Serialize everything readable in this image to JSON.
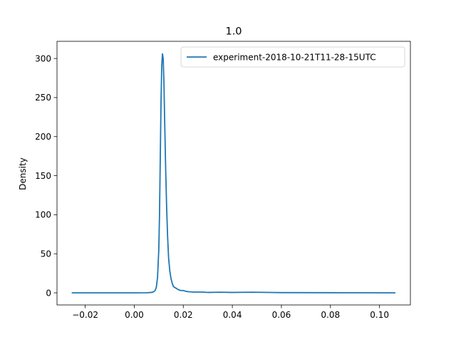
{
  "chart_data": {
    "type": "line",
    "title": "1.0",
    "xlabel": "",
    "ylabel": "Density",
    "xlim": [
      -0.0315,
      0.1126
    ],
    "ylim": [
      -15.5,
      322
    ],
    "xticks": [
      -0.02,
      0.0,
      0.02,
      0.04,
      0.06,
      0.08,
      0.1
    ],
    "xtick_labels": [
      "−0.02",
      "0.00",
      "0.02",
      "0.04",
      "0.06",
      "0.08",
      "0.10"
    ],
    "yticks": [
      0,
      50,
      100,
      150,
      200,
      250,
      300
    ],
    "ytick_labels": [
      "0",
      "50",
      "100",
      "150",
      "200",
      "250",
      "300"
    ],
    "grid": false,
    "legend_position": "top-right",
    "series": [
      {
        "name": "experiment-2018-10-21T11-28-15UTC",
        "color": "#1f77b4",
        "x": [
          -0.0255,
          -0.01,
          0.0,
          0.005,
          0.007,
          0.008,
          0.0085,
          0.009,
          0.0095,
          0.01,
          0.0103,
          0.0106,
          0.0109,
          0.0112,
          0.0115,
          0.0118,
          0.0121,
          0.0124,
          0.0128,
          0.0132,
          0.0136,
          0.014,
          0.0145,
          0.015,
          0.0155,
          0.016,
          0.0165,
          0.017,
          0.0175,
          0.018,
          0.019,
          0.02,
          0.021,
          0.022,
          0.024,
          0.026,
          0.028,
          0.03,
          0.035,
          0.04,
          0.048,
          0.06,
          0.08,
          0.1065
        ],
        "y": [
          0,
          0,
          0,
          0.1,
          0.5,
          1.5,
          3,
          7,
          20,
          55,
          100,
          170,
          240,
          290,
          306,
          300,
          270,
          220,
          160,
          110,
          72,
          45,
          28,
          18,
          12,
          8,
          7,
          6,
          5,
          4,
          3,
          3,
          2,
          1.5,
          1,
          1,
          1,
          0.5,
          0.8,
          0.5,
          0.8,
          0.3,
          0.2,
          0
        ]
      }
    ]
  }
}
